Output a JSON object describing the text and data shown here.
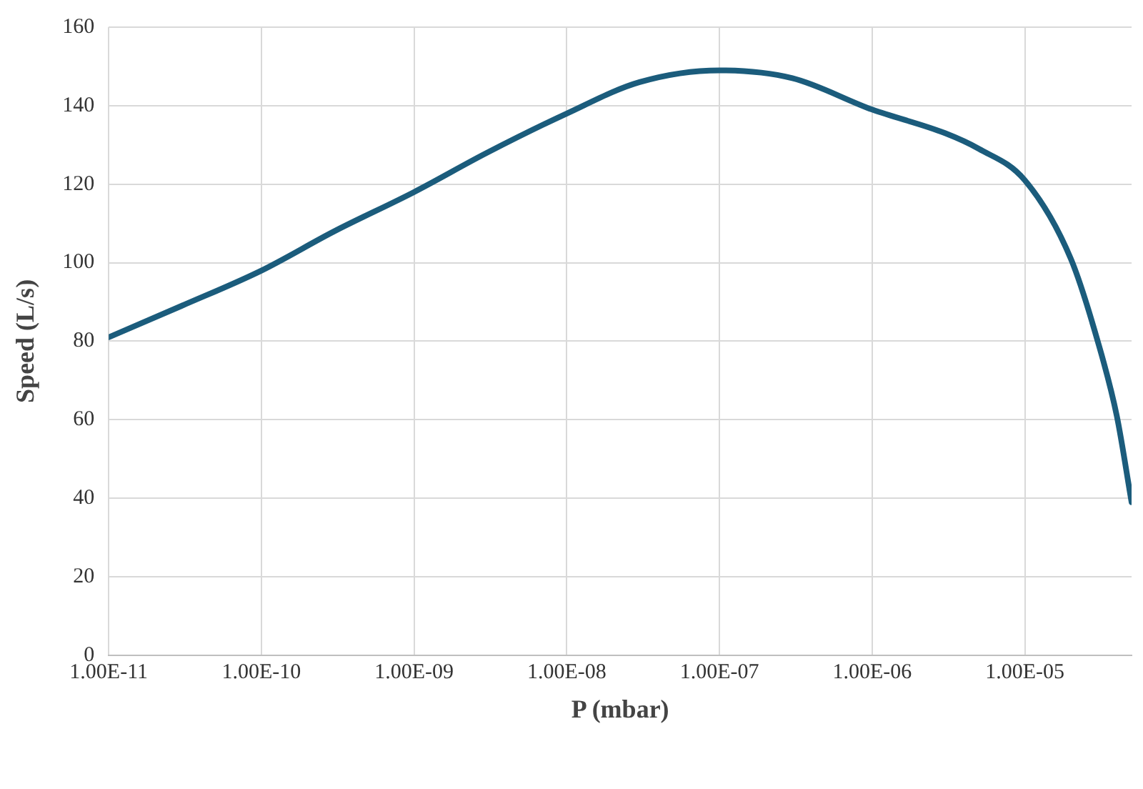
{
  "chart_data": {
    "type": "line",
    "xlabel": "P (mbar)",
    "ylabel": "Speed (L/s)",
    "log": "x",
    "x": [
      1e-11,
      3e-11,
      1e-10,
      3e-10,
      1e-09,
      3e-09,
      1e-08,
      3e-08,
      1e-07,
      3e-07,
      1e-06,
      3e-06,
      5e-06,
      1e-05,
      2e-05,
      3e-05,
      4e-05,
      5e-05
    ],
    "series": [
      {
        "color": "#1b5c7c",
        "values": [
          81,
          89,
          98,
          108,
          118,
          128,
          138,
          146,
          149,
          147,
          139,
          133,
          129,
          121,
          101,
          80,
          61,
          39
        ]
      }
    ],
    "xlim": [
      1e-11,
      5e-05
    ],
    "xticks": [
      {
        "value": 1e-11,
        "label": "1.00E-11"
      },
      {
        "value": 1e-10,
        "label": "1.00E-10"
      },
      {
        "value": 1e-09,
        "label": "1.00E-09"
      },
      {
        "value": 1e-08,
        "label": "1.00E-08"
      },
      {
        "value": 1e-07,
        "label": "1.00E-07"
      },
      {
        "value": 1e-06,
        "label": "1.00E-06"
      },
      {
        "value": 1e-05,
        "label": "1.00E-05"
      }
    ],
    "ylim": [
      0,
      160
    ],
    "yticks": [
      0,
      20,
      40,
      60,
      80,
      100,
      120,
      140,
      160
    ],
    "grid": true,
    "legend": false,
    "marker": "none",
    "line_style": "solid"
  }
}
